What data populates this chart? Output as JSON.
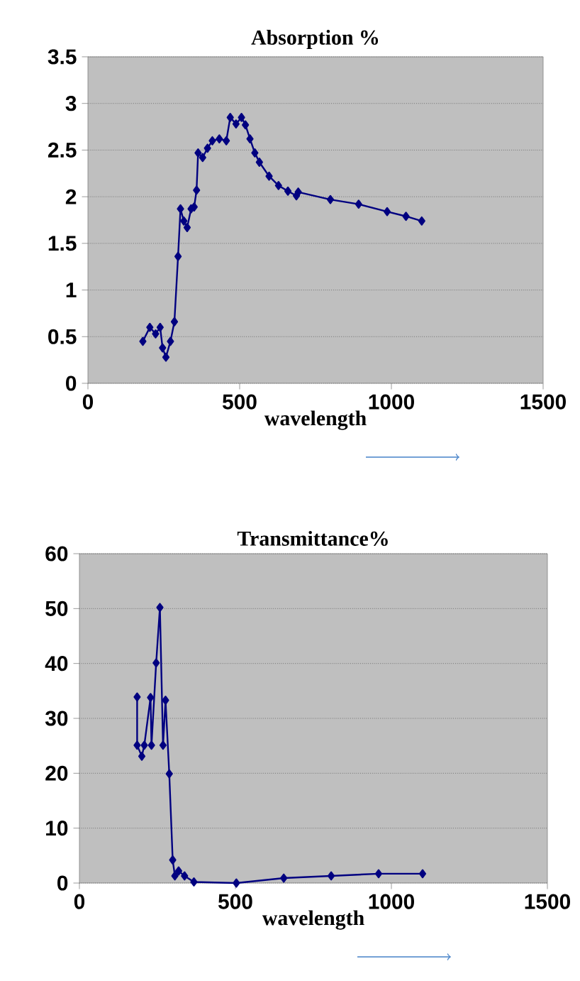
{
  "chart_data": [
    {
      "type": "line",
      "title": "Absorption %",
      "xlabel": "wavelength",
      "marker": "diamond",
      "grid": "y",
      "xlim": [
        0,
        1500
      ],
      "xticks": [
        0,
        500,
        1000,
        1500
      ],
      "ylim": [
        0,
        3.5
      ],
      "yticks": [
        0,
        0.5,
        1,
        1.5,
        2,
        2.5,
        3,
        3.5
      ],
      "series": [
        {
          "color": "#000080",
          "x": [
            181,
            204,
            223,
            238,
            246,
            257,
            272,
            285,
            297,
            305,
            316,
            327,
            340,
            350,
            358,
            363,
            378,
            394,
            410,
            433,
            456,
            469,
            488,
            506,
            519,
            534,
            550,
            565,
            597,
            628,
            659,
            687,
            693,
            799,
            892,
            986,
            1048,
            1100
          ],
          "values": [
            0.45,
            0.6,
            0.53,
            0.6,
            0.38,
            0.28,
            0.45,
            0.66,
            1.36,
            1.87,
            1.74,
            1.67,
            1.87,
            1.89,
            2.07,
            2.47,
            2.42,
            2.52,
            2.6,
            2.62,
            2.6,
            2.85,
            2.78,
            2.85,
            2.77,
            2.62,
            2.47,
            2.37,
            2.22,
            2.12,
            2.06,
            2.01,
            2.05,
            1.97,
            1.92,
            1.84,
            1.79,
            1.74
          ]
        }
      ]
    },
    {
      "type": "line",
      "title": "Transmittance%",
      "xlabel": "wavelength",
      "marker": "diamond",
      "grid": "y",
      "xlim": [
        0,
        1500
      ],
      "xticks": [
        0,
        500,
        1000,
        1500
      ],
      "ylim": [
        0,
        60
      ],
      "yticks": [
        0,
        10,
        20,
        30,
        40,
        50,
        60
      ],
      "series": [
        {
          "color": "#000080",
          "x": [
            185,
            185,
            200,
            208,
            228,
            231,
            246,
            258,
            268,
            276,
            288,
            299,
            306,
            318,
            337,
            367,
            503,
            655,
            807,
            959,
            1100
          ],
          "values": [
            33.9,
            25.1,
            23.1,
            25.1,
            33.8,
            25.1,
            40.1,
            50.2,
            25.1,
            33.3,
            19.9,
            4.2,
            1.3,
            2.2,
            1.3,
            0.2,
            0,
            0.9,
            1.3,
            1.7,
            1.7
          ]
        }
      ]
    }
  ]
}
